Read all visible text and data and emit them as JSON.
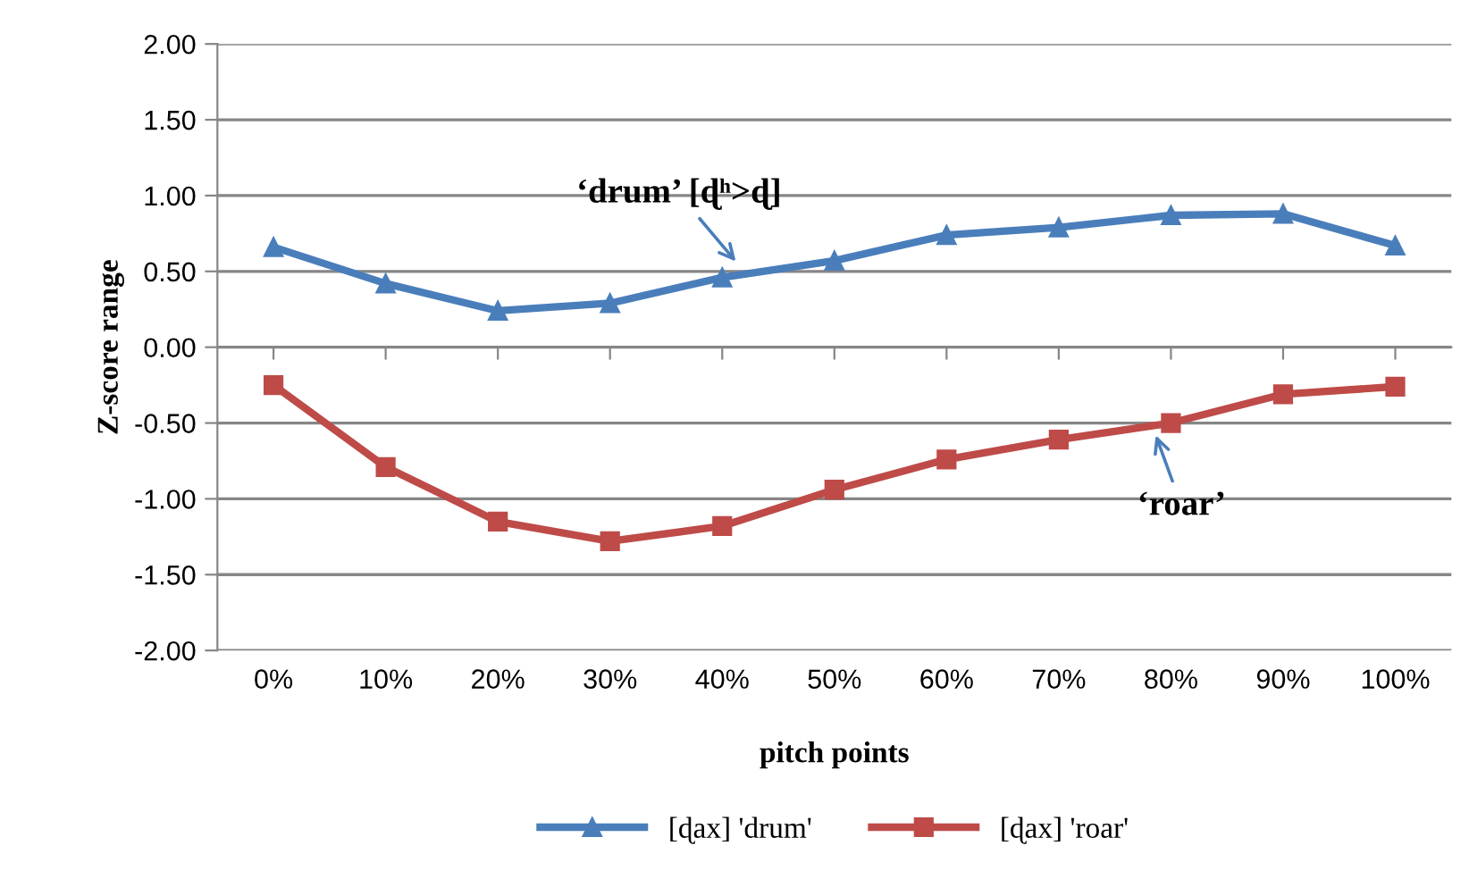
{
  "chart_data": {
    "type": "line",
    "xlabel": "pitch points",
    "ylabel": "Z-score range",
    "categories": [
      "0%",
      "10%",
      "20%",
      "30%",
      "40%",
      "50%",
      "60%",
      "70%",
      "80%",
      "90%",
      "100%"
    ],
    "series": [
      {
        "name": "[ɖax] 'drum'",
        "color": "#4a7ebb",
        "marker": "triangle",
        "values": [
          0.66,
          0.42,
          0.24,
          0.29,
          0.46,
          0.57,
          0.74,
          0.79,
          0.87,
          0.88,
          0.67
        ]
      },
      {
        "name": "[ɖax] 'roar'",
        "color": "#be4b48",
        "marker": "square",
        "values": [
          -0.25,
          -0.79,
          -1.15,
          -1.28,
          -1.18,
          -0.94,
          -0.74,
          -0.61,
          -0.5,
          -0.31,
          -0.26
        ]
      }
    ],
    "ylim": [
      -2,
      2
    ],
    "yticks": [
      {
        "value": -2,
        "label": "-2.00"
      },
      {
        "value": -1.5,
        "label": "-1.50"
      },
      {
        "value": -1,
        "label": "-1.00"
      },
      {
        "value": -0.5,
        "label": "-0.50"
      },
      {
        "value": 0,
        "label": "0.00"
      },
      {
        "value": 0.5,
        "label": "0.50"
      },
      {
        "value": 1,
        "label": "1.00"
      },
      {
        "value": 1.5,
        "label": "1.50"
      },
      {
        "value": 2,
        "label": "2.00"
      }
    ],
    "grid": "y",
    "legend": "bottom",
    "annotations": [
      {
        "text": "‘drum’ [ɖʰ>ɖ]",
        "x": "40%",
        "y": 0.46
      },
      {
        "text": "‘roar’",
        "x": "80%",
        "y": -0.5
      }
    ]
  }
}
